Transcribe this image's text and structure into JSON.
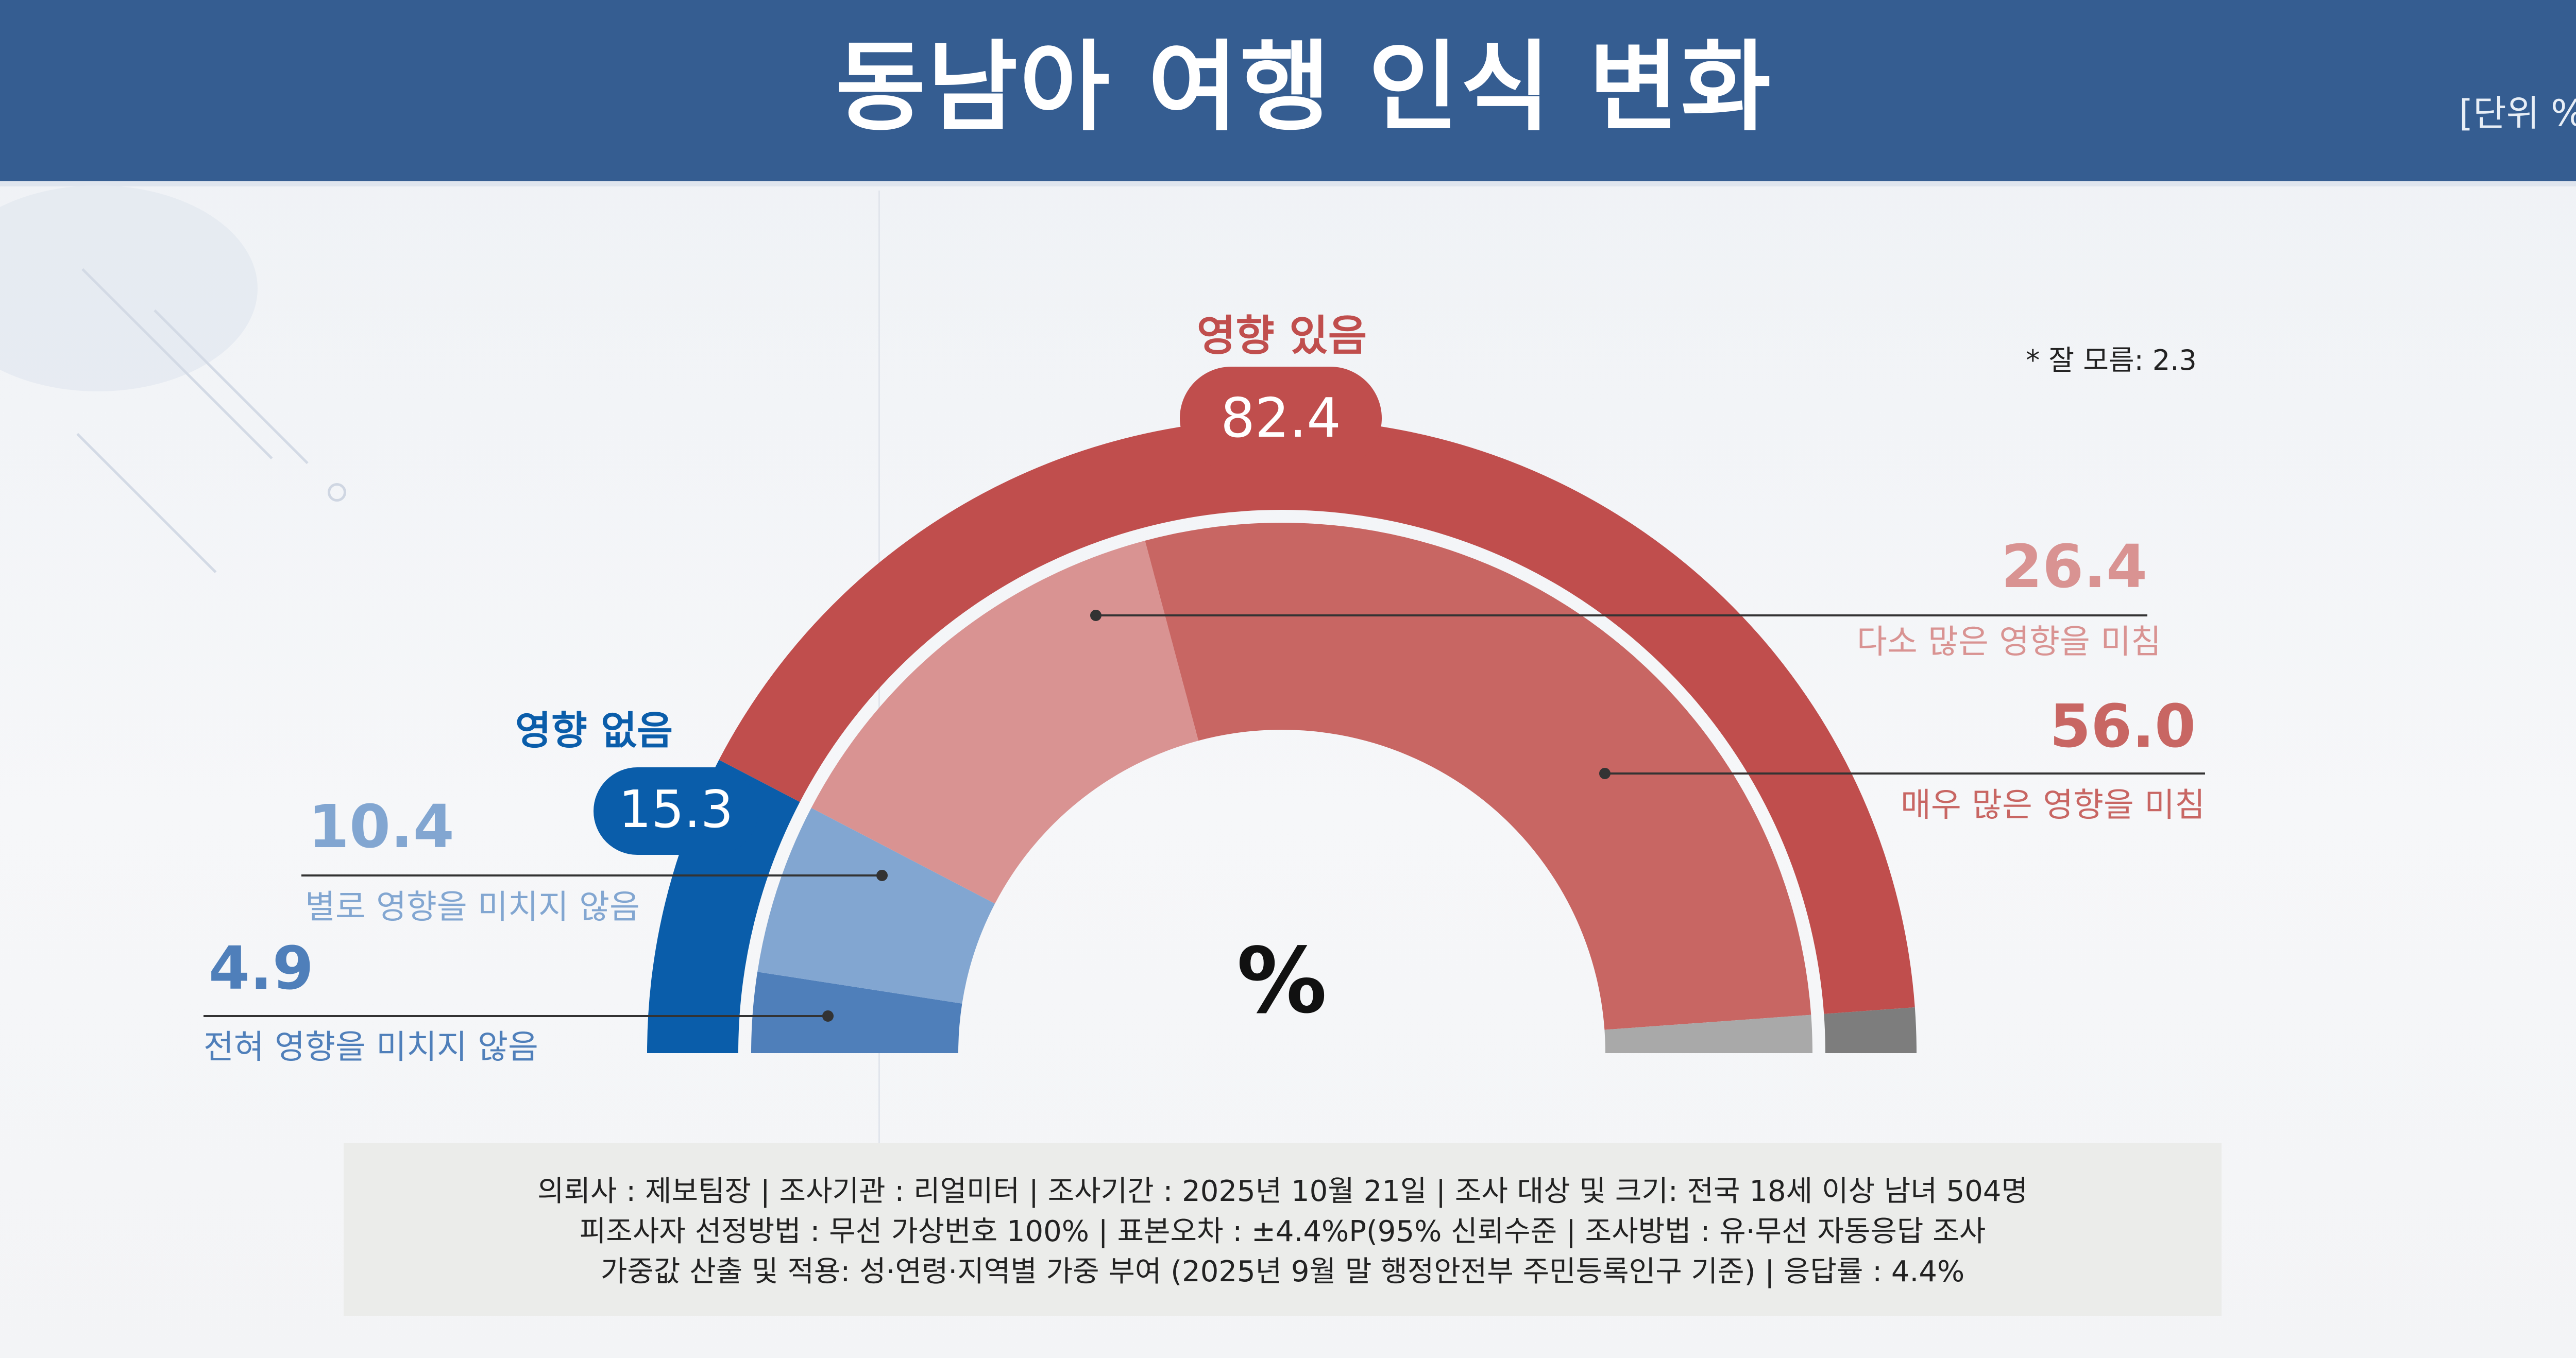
{
  "header": {
    "title": "동남아 여행 인식 변화",
    "unit": "[단위 %]"
  },
  "chart_data": {
    "type": "donut-half",
    "title": "동남아 여행 인식 변화",
    "unit": "%",
    "center_symbol": "%",
    "outer_ring": [
      {
        "name": "영향 없음",
        "value": 15.3,
        "color": "#0a5daa"
      },
      {
        "name": "영향 있음",
        "value": 82.4,
        "color": "#c04e4d"
      },
      {
        "name": "잘 모름",
        "value": 2.3,
        "color": "#7d7d7d"
      }
    ],
    "inner_ring": [
      {
        "name": "전혀 영향을 미치지 않음",
        "value": 4.9,
        "color": "#4f7fba"
      },
      {
        "name": "별로 영향을 미치지 않음",
        "value": 10.4,
        "color": "#82a6d1"
      },
      {
        "name": "다소 많은 영향을 미침",
        "value": 26.4,
        "color": "#d99392"
      },
      {
        "name": "매우 많은 영향을 미침",
        "value": 56.0,
        "color": "#c86663"
      },
      {
        "name": "잘 모름",
        "value": 2.3,
        "color": "#a9a9a9"
      }
    ],
    "labels": {
      "positive_title": "영향 있음",
      "positive_value": "82.4",
      "negative_title": "영향 없음",
      "negative_value": "15.3",
      "dont_know_note": "* 잘 모름: 2.3",
      "very_much_value": "56.0",
      "very_much_label": "매우 많은 영향을 미침",
      "somewhat_value": "26.4",
      "somewhat_label": "다소 많은 영향을 미침",
      "not_much_value": "10.4",
      "not_much_label": "별로 영향을 미치지 않음",
      "not_at_all_value": "4.9",
      "not_at_all_label": "전혀 영향을 미치지 않음"
    }
  },
  "footer": {
    "line1": "의뢰사 : 제보팀장  | 조사기관 : 리얼미터  |  조사기간 : 2025년 10월 21일 | 조사 대상 및 크기: 전국 18세 이상 남녀 504명",
    "line2": "피조사자 선정방법 : 무선 가상번호 100% | 표본오차 : ±4.4%P(95% 신뢰수준 | 조사방법 : 유·무선 자동응답 조사",
    "line3": "가중값 산출 및 적용: 성·연령·지역별 가중 부여 (2025년 9월 말 행정안전부 주민등록인구 기준) | 응답률 : 4.4%"
  }
}
